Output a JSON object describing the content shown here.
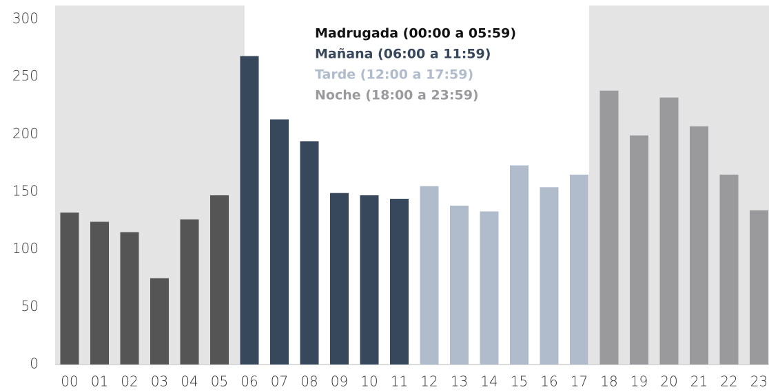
{
  "chart_data": {
    "type": "bar",
    "categories": [
      "00",
      "01",
      "02",
      "03",
      "04",
      "05",
      "06",
      "07",
      "08",
      "09",
      "10",
      "11",
      "12",
      "13",
      "14",
      "15",
      "16",
      "17",
      "18",
      "19",
      "20",
      "21",
      "22",
      "23"
    ],
    "series": [
      {
        "name": "Madrugada (00:00 a 05:59)",
        "color": "#555555",
        "legend_color": "#111111",
        "values": [
          132,
          124,
          115,
          75,
          126,
          147,
          null,
          null,
          null,
          null,
          null,
          null,
          null,
          null,
          null,
          null,
          null,
          null,
          null,
          null,
          null,
          null,
          null,
          null
        ]
      },
      {
        "name": "Mañana (06:00 a 11:59)",
        "color": "#37475c",
        "legend_color": "#37475c",
        "values": [
          null,
          null,
          null,
          null,
          null,
          null,
          268,
          213,
          194,
          149,
          147,
          144,
          null,
          null,
          null,
          null,
          null,
          null,
          null,
          null,
          null,
          null,
          null,
          null
        ]
      },
      {
        "name": "Tarde (12:00 a 17:59)",
        "color": "#b0bccb",
        "legend_color": "#b0bccb",
        "values": [
          null,
          null,
          null,
          null,
          null,
          null,
          null,
          null,
          null,
          null,
          null,
          null,
          155,
          138,
          133,
          173,
          154,
          165,
          null,
          null,
          null,
          null,
          null,
          null
        ]
      },
      {
        "name": "Noche (18:00 a 23:59)",
        "color": "#9a9a9c",
        "legend_color": "#9a9a9c",
        "values": [
          null,
          null,
          null,
          null,
          null,
          null,
          null,
          null,
          null,
          null,
          null,
          null,
          null,
          null,
          null,
          null,
          null,
          null,
          238,
          199,
          232,
          207,
          165,
          134
        ]
      }
    ],
    "ylim": [
      0,
      300
    ],
    "yticks": [
      0,
      50,
      100,
      150,
      200,
      250,
      300
    ],
    "grid": false
  }
}
